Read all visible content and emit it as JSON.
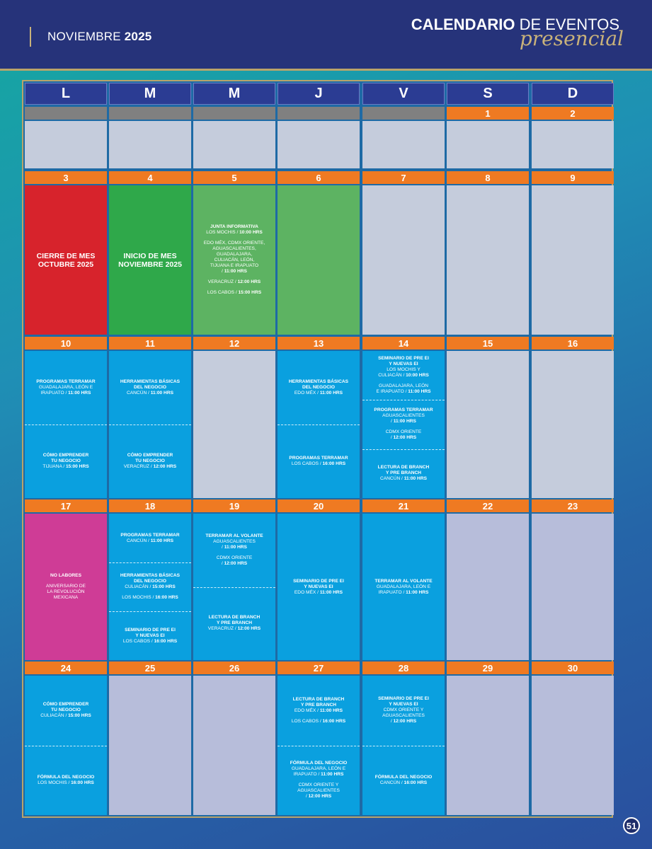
{
  "header": {
    "month": "NOVIEMBRE",
    "year": "2025",
    "title_bold": "CALENDARIO",
    "title_rest": " DE EVENTOS",
    "subtitle": "presencial"
  },
  "weekdays": [
    "L",
    "M",
    "M",
    "J",
    "V",
    "S",
    "D"
  ],
  "weeks": [
    {
      "dates": [
        "",
        "",
        "",
        "",
        "",
        "1",
        "2"
      ],
      "cells": [
        {
          "color": "gray",
          "events": []
        },
        {
          "color": "gray",
          "events": []
        },
        {
          "color": "gray",
          "events": []
        },
        {
          "color": "gray",
          "events": []
        },
        {
          "color": "gray",
          "events": []
        },
        {
          "color": "gray",
          "events": []
        },
        {
          "color": "gray",
          "events": []
        }
      ]
    },
    {
      "dates": [
        "3",
        "4",
        "5",
        "6",
        "7",
        "8",
        "9"
      ],
      "cells": [
        {
          "color": "red",
          "big": [
            "CIERRE DE MES",
            "OCTUBRE 2025"
          ],
          "events": []
        },
        {
          "color": "green",
          "big": [
            "INICIO DE MES",
            "NOVIEMBRE 2025"
          ],
          "events": []
        },
        {
          "color": "lgreen",
          "events": [
            {
              "lines": [
                {
                  "type": "t",
                  "text": "JUNTA INFORMATIVA"
                },
                {
                  "type": "s",
                  "text": "LOS MOCHIS / ",
                  "b": "10:00 HRS"
                },
                {
                  "type": "gap"
                },
                {
                  "type": "s",
                  "text": "EDO MÉX, CDMX ORIENTE,"
                },
                {
                  "type": "s",
                  "text": "AGUASCALIENTES,"
                },
                {
                  "type": "s",
                  "text": "GUADALAJARA,"
                },
                {
                  "type": "s",
                  "text": "CULIACÁN, LEÓN,"
                },
                {
                  "type": "s",
                  "text": "TIJUANA E IRAPUATO"
                },
                {
                  "type": "s",
                  "text": "/ ",
                  "b": "11:00 HRS"
                },
                {
                  "type": "gap"
                },
                {
                  "type": "s",
                  "text": "VERACRUZ / ",
                  "b": "12:00 HRS"
                },
                {
                  "type": "gap"
                },
                {
                  "type": "s",
                  "text": "LOS CABOS / ",
                  "b": "15:00 HRS"
                }
              ]
            }
          ]
        },
        {
          "color": "lgreen",
          "events": []
        },
        {
          "color": "gray",
          "events": []
        },
        {
          "color": "gray",
          "events": []
        },
        {
          "color": "gray",
          "events": []
        }
      ]
    },
    {
      "dates": [
        "10",
        "11",
        "12",
        "13",
        "14",
        "15",
        "16"
      ],
      "cells": [
        {
          "color": "blue",
          "events": [
            {
              "lines": [
                {
                  "type": "t",
                  "text": "PROGRAMAS TERRAMAR"
                },
                {
                  "type": "s",
                  "text": "GUADALAJARA, LEÓN E"
                },
                {
                  "type": "s",
                  "text": "IRAPUATO / ",
                  "b": "11:00 HRS"
                }
              ]
            },
            {
              "lines": [
                {
                  "type": "t",
                  "text": "CÓMO EMPRENDER"
                },
                {
                  "type": "t",
                  "text": "TU NEGOCIO"
                },
                {
                  "type": "s",
                  "text": "TIJUANA / ",
                  "b": "15:00 HRS"
                }
              ]
            }
          ]
        },
        {
          "color": "blue",
          "events": [
            {
              "lines": [
                {
                  "type": "t",
                  "text": "HERRAMIENTAS BÁSICAS"
                },
                {
                  "type": "t",
                  "text": "DEL NEGOCIO"
                },
                {
                  "type": "s",
                  "text": "CANCÚN / ",
                  "b": "11:00 HRS"
                }
              ]
            },
            {
              "lines": [
                {
                  "type": "t",
                  "text": "CÓMO EMPRENDER"
                },
                {
                  "type": "t",
                  "text": "TU NEGOCIO"
                },
                {
                  "type": "s",
                  "text": "VERACRUZ / ",
                  "b": "12:00 HRS"
                }
              ]
            }
          ]
        },
        {
          "color": "gray",
          "events": []
        },
        {
          "color": "blue",
          "events": [
            {
              "lines": [
                {
                  "type": "t",
                  "text": "HERRAMIENTAS BÁSICAS"
                },
                {
                  "type": "t",
                  "text": "DEL NEGOCIO"
                },
                {
                  "type": "s",
                  "text": "EDO MÉX / ",
                  "b": "11:00 HRS"
                }
              ]
            },
            {
              "lines": [
                {
                  "type": "t",
                  "text": "PROGRAMAS TERRAMAR"
                },
                {
                  "type": "s",
                  "text": "LOS CABOS / ",
                  "b": "16:00 HRS"
                }
              ]
            }
          ]
        },
        {
          "color": "blue",
          "events": [
            {
              "lines": [
                {
                  "type": "t",
                  "text": "SEMINARIO DE PRE EI"
                },
                {
                  "type": "t",
                  "text": "Y NUEVAS EI"
                },
                {
                  "type": "s",
                  "text": "LOS MOCHIS Y"
                },
                {
                  "type": "s",
                  "text": "CULIACÁN / ",
                  "b": "10:00 HRS"
                },
                {
                  "type": "gap"
                },
                {
                  "type": "s",
                  "text": "GUADALAJARA, LEÓN"
                },
                {
                  "type": "s",
                  "text": "E IRAPUATO / ",
                  "b": "11:00 HRS"
                }
              ]
            },
            {
              "lines": [
                {
                  "type": "t",
                  "text": "PROGRAMAS TERRAMAR"
                },
                {
                  "type": "s",
                  "text": "AGUASCALIENTES"
                },
                {
                  "type": "s",
                  "text": "/ ",
                  "b": "11:00 HRS"
                },
                {
                  "type": "gap"
                },
                {
                  "type": "s",
                  "text": "CDMX ORIENTE"
                },
                {
                  "type": "s",
                  "text": "/ ",
                  "b": "12:00 HRS"
                }
              ]
            },
            {
              "lines": [
                {
                  "type": "t",
                  "text": "LECTURA DE BRANCH"
                },
                {
                  "type": "t",
                  "text": "Y PRE BRANCH"
                },
                {
                  "type": "s",
                  "text": "CANCÚN / ",
                  "b": "11:00 HRS"
                }
              ]
            }
          ]
        },
        {
          "color": "gray",
          "events": []
        },
        {
          "color": "gray",
          "events": []
        }
      ]
    },
    {
      "dates": [
        "17",
        "18",
        "19",
        "20",
        "21",
        "22",
        "23"
      ],
      "cells": [
        {
          "color": "pink",
          "events": [
            {
              "lines": [
                {
                  "type": "t",
                  "text": "NO LABORES"
                },
                {
                  "type": "gap"
                },
                {
                  "type": "s",
                  "text": "ANIVERSARIO DE"
                },
                {
                  "type": "s",
                  "text": "LA REVOLUCIÓN"
                },
                {
                  "type": "s",
                  "text": "MEXICANA"
                }
              ]
            }
          ]
        },
        {
          "color": "blue",
          "events": [
            {
              "lines": [
                {
                  "type": "t",
                  "text": "PROGRAMAS TERRAMAR"
                },
                {
                  "type": "s",
                  "text": "CANCÚN / ",
                  "b": "11:00 HRS"
                }
              ]
            },
            {
              "lines": [
                {
                  "type": "t",
                  "text": "HERRAMIENTAS BÁSICAS"
                },
                {
                  "type": "t",
                  "text": "DEL NEGOCIO"
                },
                {
                  "type": "s",
                  "text": "CULIACÁN / ",
                  "b": "15:00 HRS"
                },
                {
                  "type": "gap"
                },
                {
                  "type": "s",
                  "text": "LOS MOCHIS / ",
                  "b": "16:00 HRS"
                }
              ]
            },
            {
              "lines": [
                {
                  "type": "t",
                  "text": "SEMINARIO DE PRE EI"
                },
                {
                  "type": "t",
                  "text": "Y NUEVAS EI"
                },
                {
                  "type": "s",
                  "text": "LOS CABOS / ",
                  "b": "16:00 HRS"
                }
              ]
            }
          ]
        },
        {
          "color": "blue",
          "events": [
            {
              "lines": [
                {
                  "type": "t",
                  "text": "TERRAMAR AL VOLANTE"
                },
                {
                  "type": "s",
                  "text": "AGUASCALIENTES"
                },
                {
                  "type": "s",
                  "text": "/ ",
                  "b": "11:00 HRS"
                },
                {
                  "type": "gap"
                },
                {
                  "type": "s",
                  "text": "CDMX ORIENTE"
                },
                {
                  "type": "s",
                  "text": "/ ",
                  "b": "12:00 HRS"
                }
              ]
            },
            {
              "lines": [
                {
                  "type": "t",
                  "text": "LECTURA DE BRANCH"
                },
                {
                  "type": "t",
                  "text": "Y PRE BRANCH"
                },
                {
                  "type": "s",
                  "text": "VERACRUZ / ",
                  "b": "12:00 HRS"
                }
              ]
            }
          ]
        },
        {
          "color": "blue",
          "events": [
            {
              "lines": [
                {
                  "type": "t",
                  "text": "SEMINARIO DE PRE EI"
                },
                {
                  "type": "t",
                  "text": "Y NUEVAS EI"
                },
                {
                  "type": "s",
                  "text": "EDO MÉX / ",
                  "b": "11:00 HRS"
                }
              ]
            }
          ]
        },
        {
          "color": "blue",
          "events": [
            {
              "lines": [
                {
                  "type": "t",
                  "text": "TERRAMAR AL VOLANTE"
                },
                {
                  "type": "s",
                  "text": "GUADALAJARA, LEÓN E"
                },
                {
                  "type": "s",
                  "text": "IRAPUATO / ",
                  "b": "11:00 HRS"
                }
              ]
            }
          ]
        },
        {
          "color": "gray2",
          "events": []
        },
        {
          "color": "gray2",
          "events": []
        }
      ]
    },
    {
      "dates": [
        "24",
        "25",
        "26",
        "27",
        "28",
        "29",
        "30"
      ],
      "cells": [
        {
          "color": "blue",
          "events": [
            {
              "lines": [
                {
                  "type": "t",
                  "text": "CÓMO EMPRENDER"
                },
                {
                  "type": "t",
                  "text": "TU NEGOCIO"
                },
                {
                  "type": "s",
                  "text": "CULIACÁN / ",
                  "b": "15:00 HRS"
                }
              ]
            },
            {
              "lines": [
                {
                  "type": "t",
                  "text": "FÓRMULA DEL NEGOCIO"
                },
                {
                  "type": "s",
                  "text": "LOS MOCHIS / ",
                  "b": "16:00 HRS"
                }
              ]
            }
          ]
        },
        {
          "color": "gray2",
          "events": []
        },
        {
          "color": "gray2",
          "events": []
        },
        {
          "color": "blue",
          "events": [
            {
              "lines": [
                {
                  "type": "t",
                  "text": "LECTURA DE BRANCH"
                },
                {
                  "type": "t",
                  "text": "Y PRE BRANCH"
                },
                {
                  "type": "s",
                  "text": "EDO MÉX / ",
                  "b": "11:00 HRS"
                },
                {
                  "type": "gap"
                },
                {
                  "type": "s",
                  "text": "LOS CABOS / ",
                  "b": "16:00 HRS"
                }
              ]
            },
            {
              "lines": [
                {
                  "type": "t",
                  "text": "FÓRMULA DEL NEGOCIO"
                },
                {
                  "type": "s",
                  "text": "GUADALAJARA, LEÓN E"
                },
                {
                  "type": "s",
                  "text": "IRAPUATO / ",
                  "b": "11:00 HRS"
                },
                {
                  "type": "gap"
                },
                {
                  "type": "s",
                  "text": "CDMX ORIENTE Y"
                },
                {
                  "type": "s",
                  "text": "AGUASCALIENTES"
                },
                {
                  "type": "s",
                  "text": "/ ",
                  "b": "12:00 HRS"
                }
              ]
            }
          ]
        },
        {
          "color": "blue",
          "events": [
            {
              "lines": [
                {
                  "type": "t",
                  "text": "SEMINARIO DE PRE EI"
                },
                {
                  "type": "t",
                  "text": "Y NUEVAS EI"
                },
                {
                  "type": "s",
                  "text": "CDMX ORIENTE Y"
                },
                {
                  "type": "s",
                  "text": "AGUASCALIENTES"
                },
                {
                  "type": "s",
                  "text": "/ ",
                  "b": "12:00 HRS"
                }
              ]
            },
            {
              "lines": [
                {
                  "type": "t",
                  "text": "FÓRMULA DEL NEGOCIO"
                },
                {
                  "type": "s",
                  "text": "CANCÚN / ",
                  "b": "16:00 HRS"
                }
              ]
            }
          ]
        },
        {
          "color": "gray2",
          "events": []
        },
        {
          "color": "gray2",
          "events": []
        }
      ]
    }
  ],
  "page_number": "51"
}
